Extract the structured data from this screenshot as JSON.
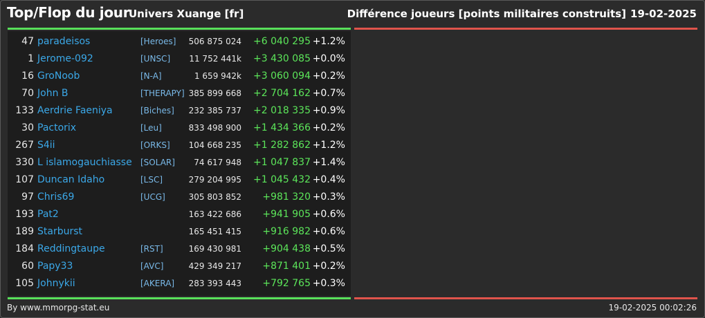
{
  "header": {
    "title": "Top/Flop du jour",
    "universe": "Univers Xuange [fr]",
    "metric": "Différence joueurs [points militaires construits]",
    "date": "19-02-2025"
  },
  "colors": {
    "top_bar": "#58e05a",
    "flop_bar": "#e0544b",
    "player_name": "#3ba8e8",
    "gain": "#5ce65a"
  },
  "rows": [
    {
      "rank": "47",
      "name": "paradeisos",
      "alliance": "[Heroes]",
      "points": "506 875 024",
      "diff": "+6 040 295",
      "pct": "+1.2%"
    },
    {
      "rank": "1",
      "name": "Jerome-092",
      "alliance": "[UNSC]",
      "points": "11 752 441k",
      "diff": "+3 430 085",
      "pct": "+0.0%"
    },
    {
      "rank": "16",
      "name": "GroNoob",
      "alliance": "[N-A]",
      "points": "1 659 942k",
      "diff": "+3 060 094",
      "pct": "+0.2%"
    },
    {
      "rank": "70",
      "name": "John B",
      "alliance": "[THERAPY]",
      "points": "385 899 668",
      "diff": "+2 704 162",
      "pct": "+0.7%"
    },
    {
      "rank": "133",
      "name": "Aerdrie Faeniya",
      "alliance": "[Biches]",
      "points": "232 385 737",
      "diff": "+2 018 335",
      "pct": "+0.9%"
    },
    {
      "rank": "30",
      "name": "Pactorix",
      "alliance": "[Leu]",
      "points": "833 498 900",
      "diff": "+1 434 366",
      "pct": "+0.2%"
    },
    {
      "rank": "267",
      "name": "S4ii",
      "alliance": "[ORKS]",
      "points": "104 668 235",
      "diff": "+1 282 862",
      "pct": "+1.2%"
    },
    {
      "rank": "330",
      "name": "L islamogauchiasse",
      "alliance": "[SOLAR]",
      "points": "74 617 948",
      "diff": "+1 047 837",
      "pct": "+1.4%"
    },
    {
      "rank": "107",
      "name": "Duncan Idaho",
      "alliance": "[LSC]",
      "points": "279 204 995",
      "diff": "+1 045 432",
      "pct": "+0.4%"
    },
    {
      "rank": "97",
      "name": "Chris69",
      "alliance": "[UCG]",
      "points": "305 803 852",
      "diff": "+981 320",
      "pct": "+0.3%"
    },
    {
      "rank": "193",
      "name": "Pat2",
      "alliance": "",
      "points": "163 422 686",
      "diff": "+941 905",
      "pct": "+0.6%"
    },
    {
      "rank": "189",
      "name": "Starburst",
      "alliance": "",
      "points": "165 451 415",
      "diff": "+916 982",
      "pct": "+0.6%"
    },
    {
      "rank": "184",
      "name": "Reddingtaupe",
      "alliance": "[RST]",
      "points": "169 430 981",
      "diff": "+904 438",
      "pct": "+0.5%"
    },
    {
      "rank": "60",
      "name": "Papy33",
      "alliance": "[AVC]",
      "points": "429 349 217",
      "diff": "+871 401",
      "pct": "+0.2%"
    },
    {
      "rank": "105",
      "name": "Johnykii",
      "alliance": "[AKERA]",
      "points": "283 393 443",
      "diff": "+792 765",
      "pct": "+0.3%"
    }
  ],
  "footer": {
    "credit": "By www.mmorpg-stat.eu",
    "timestamp": "19-02-2025 00:02:26"
  }
}
